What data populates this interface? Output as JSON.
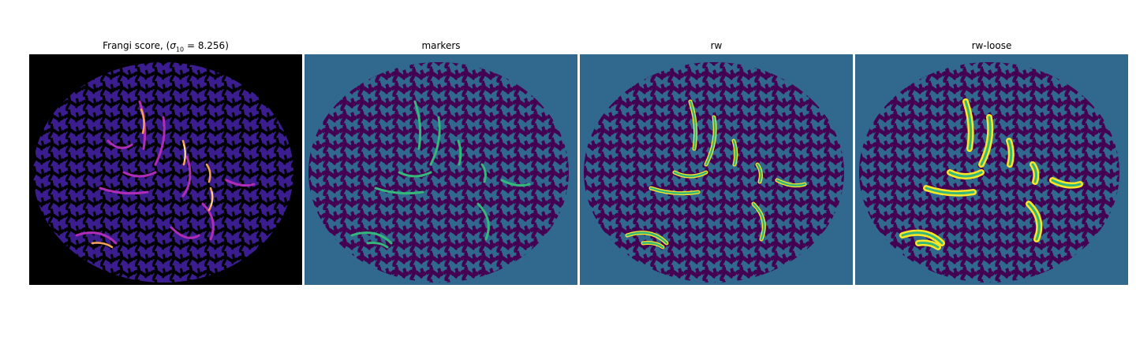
{
  "panels": [
    {
      "title_pre": "Frangi score, (",
      "title_sigma": "σ",
      "title_sub": "10",
      "title_post": " = 8.256)",
      "colormap": "magma"
    },
    {
      "title": "markers",
      "colormap": "viridis"
    },
    {
      "title": "rw",
      "colormap": "viridis"
    },
    {
      "title": "rw-loose",
      "colormap": "viridis"
    }
  ],
  "colors": {
    "black": "#000000",
    "dark_purple": "#1a0a3c",
    "vessel_blue": "#3b1d8f",
    "vessel_magenta": "#b02db8",
    "vessel_orange": "#f6a25a",
    "vessel_yellow": "#fde68a",
    "viridis_purple": "#440154",
    "viridis_blue": "#31688e",
    "viridis_green": "#35b779",
    "viridis_yellow": "#fde725"
  }
}
